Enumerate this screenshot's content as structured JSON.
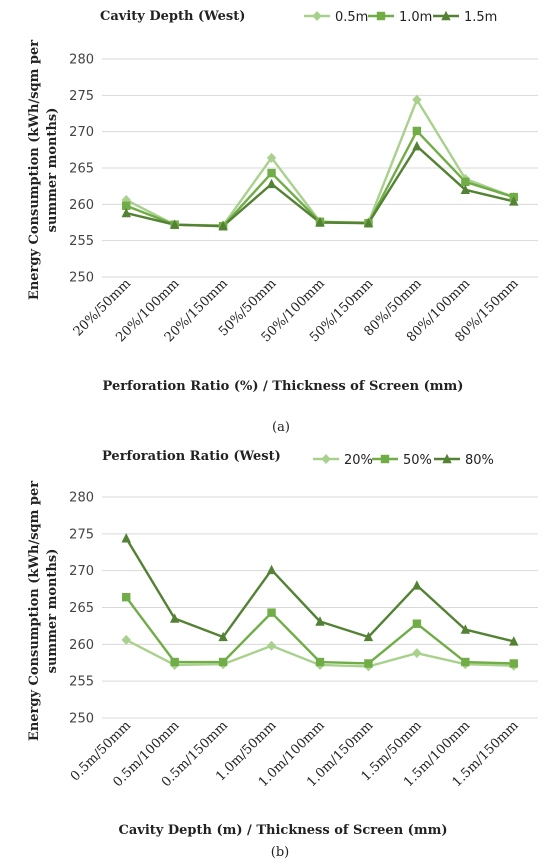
{
  "chart_data": [
    {
      "type": "line",
      "title": "Cavity Depth (West)",
      "xlabel": "Perforation Ratio (%) / Thickness of Screen (mm)",
      "ylabel": "Energy Consumption (kWh/sqm per summer months)",
      "ylim": [
        250,
        280
      ],
      "yticks": [
        250,
        255,
        260,
        265,
        270,
        275,
        280
      ],
      "grid": true,
      "legend_position": "top-right",
      "caption": "(a)",
      "categories": [
        "20%/50mm",
        "20%/100mm",
        "20%/150mm",
        "50%/50mm",
        "50%/100mm",
        "50%/150mm",
        "80%/50mm",
        "80%/100mm",
        "80%/150mm"
      ],
      "series": [
        {
          "name": "0.5m",
          "marker": "diamond",
          "color": "#a9d18e",
          "values": [
            260.6,
            257.2,
            257.1,
            266.4,
            257.6,
            257.5,
            274.4,
            263.5,
            261.0
          ]
        },
        {
          "name": "1.0m",
          "marker": "square",
          "color": "#70ad47",
          "values": [
            259.8,
            257.2,
            257.0,
            264.3,
            257.6,
            257.4,
            270.1,
            263.1,
            261.0
          ]
        },
        {
          "name": "1.5m",
          "marker": "triangle",
          "color": "#548235",
          "values": [
            258.8,
            257.2,
            257.0,
            262.8,
            257.5,
            257.4,
            268.0,
            262.0,
            260.4
          ]
        }
      ]
    },
    {
      "type": "line",
      "title": "Perforation Ratio (West)",
      "xlabel": "Cavity Depth (m) / Thickness of Screen (mm)",
      "ylabel": "Energy Consumption (kWh/sqm per summer months)",
      "ylim": [
        250,
        280
      ],
      "yticks": [
        250,
        255,
        260,
        265,
        270,
        275,
        280
      ],
      "grid": true,
      "legend_position": "top-right",
      "caption": "(b)",
      "categories": [
        "0.5m/50mm",
        "0.5m/100mm",
        "0.5m/150mm",
        "1.0m/50mm",
        "1.0m/100mm",
        "1.0m/150mm",
        "1.5m/50mm",
        "1.5m/100mm",
        "1.5m/150mm"
      ],
      "series": [
        {
          "name": "20%",
          "marker": "diamond",
          "color": "#a9d18e",
          "values": [
            260.6,
            257.2,
            257.3,
            259.8,
            257.2,
            257.0,
            258.8,
            257.3,
            257.1
          ]
        },
        {
          "name": "50%",
          "marker": "square",
          "color": "#70ad47",
          "values": [
            266.4,
            257.6,
            257.6,
            264.3,
            257.6,
            257.4,
            262.8,
            257.6,
            257.4
          ]
        },
        {
          "name": "80%",
          "marker": "triangle",
          "color": "#548235",
          "values": [
            274.4,
            263.5,
            261.0,
            270.1,
            263.1,
            261.0,
            268.0,
            262.0,
            260.4
          ]
        }
      ]
    }
  ]
}
